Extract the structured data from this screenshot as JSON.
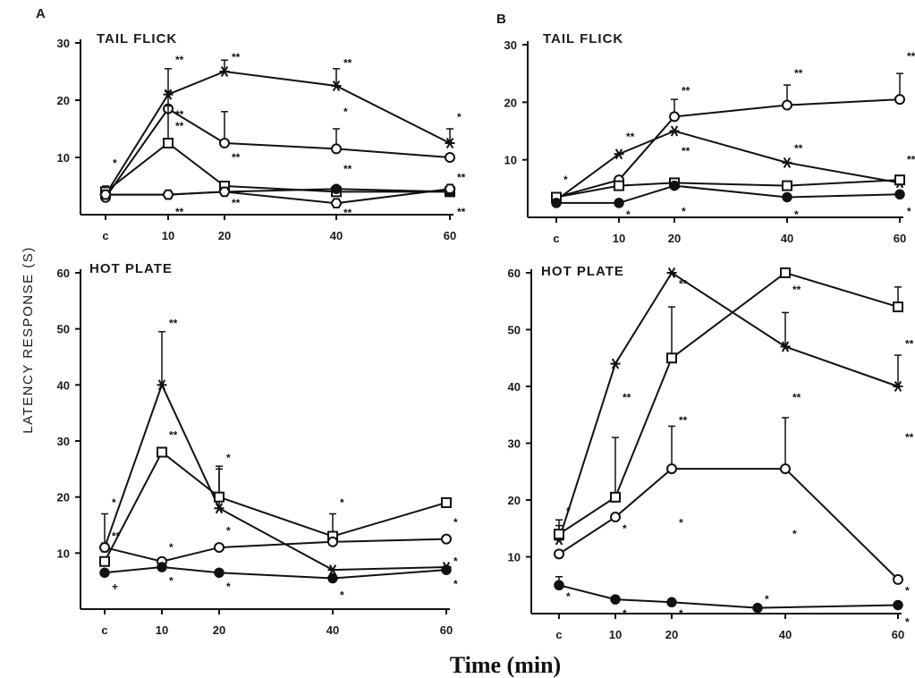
{
  "figure": {
    "ylabel": "LATENCY RESPONSE (S)",
    "xlabel": "Time (min)"
  },
  "chart_data": [
    {
      "id": "a1",
      "type": "line",
      "panel_letter": "A",
      "title": "TAIL FLICK",
      "x": [
        "c",
        "10",
        "20",
        "40",
        "60"
      ],
      "xticks": [
        "c",
        "10",
        "20",
        "40",
        "60"
      ],
      "ylim": [
        0,
        30
      ],
      "yticks": [
        10,
        20,
        30
      ],
      "series": [
        {
          "marker": "star",
          "values": [
            3.5,
            21,
            25,
            22.5,
            12.5
          ],
          "err": [
            1.5,
            4.5,
            2,
            3,
            2.5
          ]
        },
        {
          "marker": "circle-open",
          "values": [
            3,
            18.5,
            12.5,
            11.5,
            10
          ],
          "err": [
            1.5,
            3,
            5.5,
            3.5,
            1
          ]
        },
        {
          "marker": "square-open",
          "values": [
            4,
            12.5,
            5,
            4,
            4
          ],
          "err": [
            1,
            6.5,
            1,
            1,
            1
          ]
        },
        {
          "marker": "circle-filled",
          "values": [
            3.5,
            3.5,
            4,
            4.5,
            4
          ],
          "err": [
            1,
            1,
            1,
            1,
            1
          ]
        },
        {
          "marker": "hex-open",
          "values": [
            3.5,
            3.5,
            4,
            2,
            4.5
          ],
          "err": [
            1,
            1,
            1,
            1,
            1
          ]
        }
      ],
      "annotations": [
        {
          "x": "c",
          "y": 9,
          "text": "*"
        },
        {
          "x": "10",
          "y": 27,
          "text": "**"
        },
        {
          "x": "10",
          "y": 17.5,
          "text": "**"
        },
        {
          "x": "10",
          "y": 15.5,
          "text": "**"
        },
        {
          "x": "10",
          "y": 0.5,
          "text": "**"
        },
        {
          "x": "20",
          "y": 27.5,
          "text": "**"
        },
        {
          "x": "20",
          "y": 10,
          "text": "**"
        },
        {
          "x": "20",
          "y": 2,
          "text": "**"
        },
        {
          "x": "40",
          "y": 26.5,
          "text": "**"
        },
        {
          "x": "40",
          "y": 18,
          "text": "*"
        },
        {
          "x": "40",
          "y": 8,
          "text": "**"
        },
        {
          "x": "40",
          "y": 0.3,
          "text": "**"
        },
        {
          "x": "60",
          "y": 17,
          "text": "*"
        },
        {
          "x": "60",
          "y": 6.5,
          "text": "**"
        },
        {
          "x": "60",
          "y": 0.5,
          "text": "**"
        }
      ]
    },
    {
      "id": "b1",
      "type": "line",
      "panel_letter": "B",
      "title": "TAIL FLICK",
      "x": [
        "c",
        "10",
        "20",
        "40",
        "60"
      ],
      "xticks": [
        "c",
        "10",
        "20",
        "40",
        "60"
      ],
      "ylim": [
        0,
        30
      ],
      "yticks": [
        10,
        20,
        30
      ],
      "series": [
        {
          "marker": "circle-open",
          "values": [
            3.5,
            6.5,
            17.5,
            19.5,
            20.5
          ],
          "err": [
            1,
            1,
            3,
            3.5,
            4.5
          ]
        },
        {
          "marker": "star",
          "values": [
            3,
            11,
            15,
            9.5,
            6
          ],
          "err": [
            1,
            1,
            1,
            1,
            1
          ]
        },
        {
          "marker": "square-open",
          "values": [
            3.5,
            5.5,
            6,
            5.5,
            6.5
          ],
          "err": [
            1,
            1,
            1,
            1,
            1
          ]
        },
        {
          "marker": "circle-filled",
          "values": [
            2.5,
            2.5,
            5.5,
            3.5,
            4
          ],
          "err": [
            1,
            1,
            1,
            1,
            1
          ]
        }
      ],
      "annotations": [
        {
          "x": "c",
          "y": 6.5,
          "text": "*"
        },
        {
          "x": "10",
          "y": 14,
          "text": "**"
        },
        {
          "x": "10",
          "y": 0.5,
          "text": "*"
        },
        {
          "x": "20",
          "y": 22,
          "text": "**"
        },
        {
          "x": "20",
          "y": 11.5,
          "text": "**"
        },
        {
          "x": "20",
          "y": 1,
          "text": "*"
        },
        {
          "x": "40",
          "y": 25,
          "text": "**"
        },
        {
          "x": "40",
          "y": 12,
          "text": "**"
        },
        {
          "x": "40",
          "y": 0.5,
          "text": "*"
        },
        {
          "x": "60",
          "y": 28,
          "text": "**"
        },
        {
          "x": "60",
          "y": 10,
          "text": "**"
        },
        {
          "x": "60",
          "y": 1,
          "text": "*"
        }
      ]
    },
    {
      "id": "a2",
      "type": "line",
      "title": "HOT PLATE",
      "x": [
        "c",
        "10",
        "20",
        "40",
        "60"
      ],
      "xticks": [
        "c",
        "10",
        "20",
        "40",
        "60"
      ],
      "ylim": [
        0,
        60
      ],
      "yticks": [
        10,
        20,
        30,
        40,
        50,
        60
      ],
      "series": [
        {
          "marker": "star",
          "values": [
            11,
            40,
            18,
            7,
            7.5
          ],
          "err": [
            6,
            9.5,
            7,
            1,
            1
          ]
        },
        {
          "marker": "square-open",
          "values": [
            8.5,
            28,
            20,
            13,
            19
          ],
          "err": [
            1,
            1,
            5.5,
            4,
            1
          ]
        },
        {
          "marker": "circle-open",
          "values": [
            11,
            8.5,
            11,
            12,
            12.5
          ],
          "err": [
            1,
            1,
            1,
            1,
            1
          ]
        },
        {
          "marker": "circle-filled",
          "values": [
            6.5,
            7.5,
            6.5,
            5.5,
            7
          ],
          "err": [
            1,
            1,
            1,
            1,
            1
          ]
        }
      ],
      "annotations": [
        {
          "x": "c",
          "y": 19,
          "text": "*"
        },
        {
          "x": "c",
          "y": 13,
          "text": "**"
        },
        {
          "x": "c",
          "y": 4,
          "text": "+"
        },
        {
          "x": "10",
          "y": 51,
          "text": "**"
        },
        {
          "x": "10",
          "y": 31,
          "text": "**"
        },
        {
          "x": "10",
          "y": 11,
          "text": "*"
        },
        {
          "x": "10",
          "y": 5,
          "text": "*"
        },
        {
          "x": "20",
          "y": 27,
          "text": "*"
        },
        {
          "x": "20",
          "y": 14,
          "text": "*"
        },
        {
          "x": "20",
          "y": 4,
          "text": "*"
        },
        {
          "x": "40",
          "y": 19,
          "text": "*"
        },
        {
          "x": "40",
          "y": 2.5,
          "text": "*"
        },
        {
          "x": "60",
          "y": 15.5,
          "text": "*"
        },
        {
          "x": "60",
          "y": 8.5,
          "text": "*"
        },
        {
          "x": "60",
          "y": 4.5,
          "text": "*"
        }
      ]
    },
    {
      "id": "b2",
      "type": "line",
      "title": "HOT PLATE",
      "x": [
        "c",
        "10",
        "20",
        "40",
        "60"
      ],
      "xticks": [
        "c",
        "10",
        "20",
        "40",
        "60"
      ],
      "ylim": [
        0,
        60
      ],
      "yticks": [
        10,
        20,
        30,
        40,
        50,
        60
      ],
      "series": [
        {
          "marker": "star",
          "values": [
            13,
            44,
            60,
            47,
            40
          ],
          "err": [
            2.5,
            1,
            1,
            6,
            5.5
          ]
        },
        {
          "marker": "square-open",
          "values": [
            14,
            20.5,
            45,
            60,
            54
          ],
          "err": [
            2.5,
            10.5,
            9,
            1,
            3.5
          ]
        },
        {
          "marker": "circle-open",
          "values": [
            10.5,
            17,
            25.5,
            25.5,
            6
          ],
          "err": [
            1,
            1,
            7.5,
            9,
            1
          ]
        },
        {
          "marker": "circle-filled",
          "x": [
            "c",
            "10",
            "20",
            "35",
            "60"
          ],
          "values": [
            5,
            2.5,
            2,
            1,
            1.5
          ],
          "err": [
            1.5,
            1,
            1,
            1,
            1
          ]
        }
      ],
      "annotations": [
        {
          "x": "c",
          "y": 18,
          "text": "*"
        },
        {
          "x": "c",
          "y": 3,
          "text": "*"
        },
        {
          "x": "10",
          "y": 38,
          "text": "**"
        },
        {
          "x": "10",
          "y": 15,
          "text": "*"
        },
        {
          "x": "10",
          "y": 0,
          "text": "*"
        },
        {
          "x": "20",
          "y": 58,
          "text": "**"
        },
        {
          "x": "20",
          "y": 34,
          "text": "**"
        },
        {
          "x": "20",
          "y": 16,
          "text": "*"
        },
        {
          "x": "20",
          "y": 0,
          "text": "*"
        },
        {
          "x": "35",
          "y": 2.5,
          "text": "*"
        },
        {
          "x": "40",
          "y": 57,
          "text": "**"
        },
        {
          "x": "40",
          "y": 38,
          "text": "**"
        },
        {
          "x": "40",
          "y": 14,
          "text": "*"
        },
        {
          "x": "60",
          "y": 47.5,
          "text": "**"
        },
        {
          "x": "60",
          "y": 31,
          "text": "**"
        },
        {
          "x": "60",
          "y": 4,
          "text": "*"
        },
        {
          "x": "60",
          "y": -1.5,
          "text": "*"
        }
      ]
    }
  ]
}
